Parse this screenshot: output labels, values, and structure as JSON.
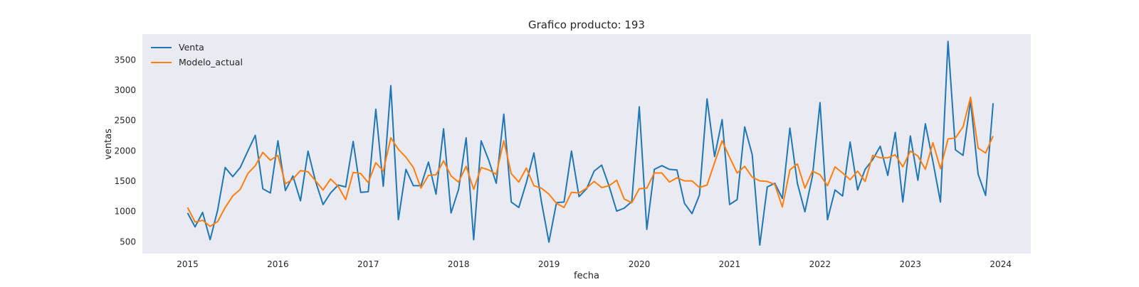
{
  "chart_data": {
    "type": "line",
    "title": "Grafico producto: 193",
    "xlabel": "fecha",
    "ylabel": "ventas",
    "x_start": "2015-01",
    "x_frequency": "monthly",
    "x_ticks": [
      "2015",
      "2016",
      "2017",
      "2018",
      "2019",
      "2020",
      "2021",
      "2022",
      "2023",
      "2024"
    ],
    "y_ticks": [
      "500",
      "1000",
      "1500",
      "2000",
      "2500",
      "3000",
      "3500"
    ],
    "xlim": [
      "2014-07",
      "2024-05"
    ],
    "ylim": [
      300,
      3920
    ],
    "grid": false,
    "background": "#EAEAF2",
    "legend_position": "top-left",
    "series": [
      {
        "name": "Venta",
        "color": "#1F77B4",
        "values": [
          970,
          740,
          980,
          530,
          1020,
          1720,
          1570,
          1720,
          1990,
          2250,
          1370,
          1300,
          2160,
          1340,
          1580,
          1170,
          1990,
          1490,
          1110,
          1300,
          1430,
          1400,
          2150,
          1310,
          1320,
          2680,
          1410,
          3070,
          860,
          1690,
          1420,
          1420,
          1810,
          1280,
          2360,
          970,
          1360,
          2210,
          530,
          2160,
          1840,
          1460,
          2600,
          1150,
          1060,
          1470,
          1960,
          1160,
          490,
          1140,
          1150,
          1990,
          1240,
          1370,
          1660,
          1760,
          1410,
          1000,
          1050,
          1160,
          2720,
          700,
          1690,
          1750,
          1690,
          1680,
          1130,
          960,
          1270,
          2850,
          1900,
          2510,
          1110,
          1190,
          2390,
          1930,
          440,
          1400,
          1460,
          1210,
          2370,
          1460,
          990,
          1580,
          2790,
          860,
          1350,
          1250,
          2140,
          1350,
          1690,
          1850,
          2070,
          1590,
          2300,
          1150,
          2240,
          1510,
          2440,
          1820,
          1150,
          3800,
          2010,
          1920,
          2820,
          1610,
          1260,
          2780
        ]
      },
      {
        "name": "Modelo_actual",
        "color": "#FF7F0E",
        "values": [
          1060,
          820,
          850,
          750,
          830,
          1060,
          1250,
          1360,
          1620,
          1750,
          1970,
          1840,
          1920,
          1450,
          1530,
          1670,
          1650,
          1500,
          1350,
          1530,
          1410,
          1190,
          1640,
          1620,
          1470,
          1800,
          1660,
          2210,
          2020,
          1890,
          1720,
          1380,
          1590,
          1600,
          1830,
          1580,
          1480,
          1740,
          1360,
          1720,
          1680,
          1610,
          2160,
          1620,
          1480,
          1710,
          1420,
          1380,
          1280,
          1130,
          1060,
          1310,
          1300,
          1380,
          1490,
          1390,
          1420,
          1510,
          1200,
          1140,
          1370,
          1380,
          1630,
          1630,
          1480,
          1550,
          1500,
          1500,
          1390,
          1430,
          1800,
          2160,
          1890,
          1630,
          1740,
          1560,
          1500,
          1490,
          1440,
          1070,
          1680,
          1780,
          1380,
          1660,
          1600,
          1420,
          1730,
          1630,
          1520,
          1660,
          1490,
          1920,
          1880,
          1880,
          1930,
          1730,
          1990,
          1910,
          1690,
          2130,
          1700,
          2190,
          2210,
          2390,
          2880,
          2040,
          1960,
          2240
        ]
      }
    ]
  }
}
